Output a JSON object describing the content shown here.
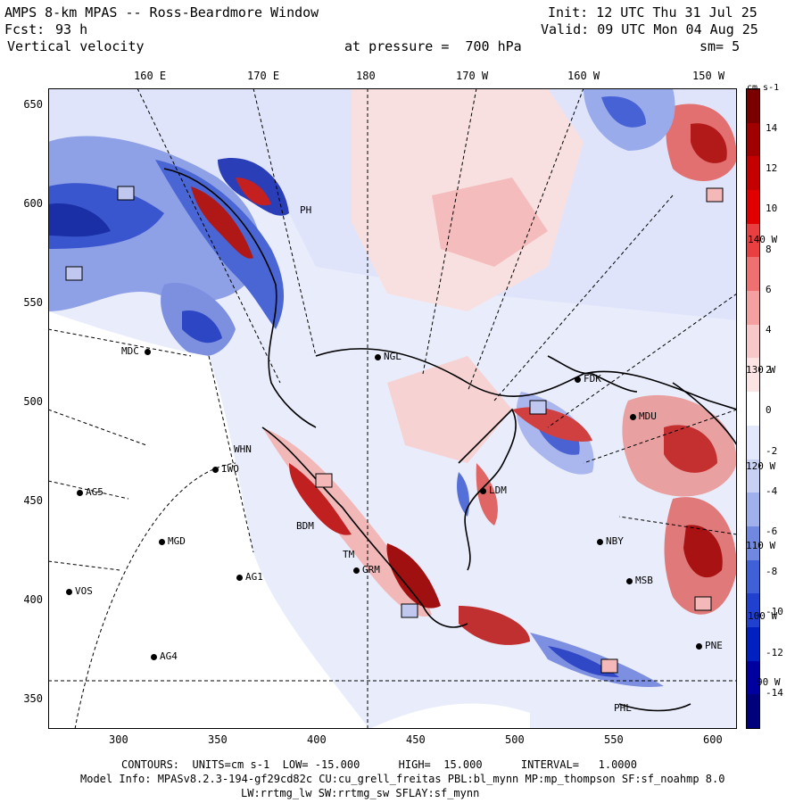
{
  "header": {
    "title": "AMPS 8-km MPAS -- Ross-Beardmore Window",
    "init": "Init: 12 UTC Thu 31 Jul 25",
    "fcst_label": "Fcst:",
    "fcst_value": "93 h",
    "valid": "Valid: 09 UTC Mon 04 Aug 25",
    "field": "Vertical velocity",
    "pressure": "at pressure =  700 hPa",
    "smoothing": "sm= 5"
  },
  "colorbar": {
    "units": "cm s-1",
    "ticks": [
      "14",
      "12",
      "10",
      "8",
      "6",
      "4",
      "2",
      "0",
      "-2",
      "-4",
      "-6",
      "-8",
      "-10",
      "-12",
      "-14"
    ],
    "colors": [
      "#7a0000",
      "#a00000",
      "#c40000",
      "#e00000",
      "#e84040",
      "#ee7070",
      "#f4a0a0",
      "#f8c8c8",
      "#fce4e4",
      "#ffffff",
      "#e4e8fc",
      "#c8d0f4",
      "#a0b0ec",
      "#7088e0",
      "#4060d8",
      "#2040d0",
      "#0020c0",
      "#0000a0",
      "#00007a"
    ]
  },
  "axes": {
    "lon_labels": [
      "160 E",
      "170 E",
      "180",
      "170 W",
      "160 W",
      "150 W"
    ],
    "y_ticks": [
      "650",
      "600",
      "550",
      "500",
      "450",
      "400",
      "350"
    ],
    "x_ticks": [
      "300",
      "350",
      "400",
      "450",
      "500",
      "550",
      "600"
    ],
    "right_lon_labels": [
      "140 W",
      "130 W",
      "120 W",
      "110 W",
      "100 W",
      "90 W"
    ]
  },
  "stations": [
    {
      "name": "MDC"
    },
    {
      "name": "NGL"
    },
    {
      "name": "FDK"
    },
    {
      "name": "MDU"
    },
    {
      "name": "IWO"
    },
    {
      "name": "AG5"
    },
    {
      "name": "BDM"
    },
    {
      "name": "MGD"
    },
    {
      "name": "TM"
    },
    {
      "name": "GRM"
    },
    {
      "name": "AG1"
    },
    {
      "name": "VOS"
    },
    {
      "name": "AG4"
    },
    {
      "name": "LDM"
    },
    {
      "name": "NBY"
    },
    {
      "name": "MSB"
    },
    {
      "name": "PNE"
    },
    {
      "name": "PHL"
    },
    {
      "name": "PH"
    },
    {
      "name": "WHN"
    }
  ],
  "footer": {
    "contours": "CONTOURS:  UNITS=cm s-1  LOW= -15.000      HIGH=  15.000      INTERVAL=   1.0000",
    "model_info": "Model Info: MPASv8.2.3-194-gf29cd82c CU:cu_grell_freitas PBL:bl_mynn MP:mp_thompson SF:sf_noahmp 8.0",
    "model_info2": "LW:rrtmg_lw SW:rrtmg_sw SFLAY:sf_mynn"
  }
}
